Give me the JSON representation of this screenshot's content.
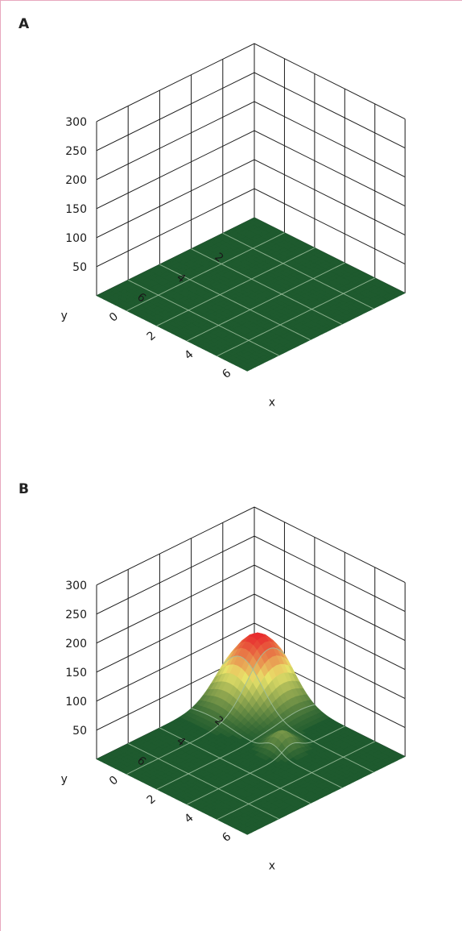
{
  "chart_data": [
    {
      "type": "surface3d",
      "panel_label": "A",
      "zlabel": "",
      "xlabel": "x",
      "ylabel": "y",
      "z_ticks": [
        50,
        100,
        150,
        200,
        250,
        300
      ],
      "x_ticks": [
        0,
        2,
        4,
        6
      ],
      "y_ticks": [
        2,
        4,
        6
      ],
      "xlim": [
        0,
        8
      ],
      "ylim": [
        0,
        8
      ],
      "zlim": [
        0,
        300
      ],
      "surface": {
        "base": 0,
        "peaks": []
      },
      "colors": {
        "floor": "#1e5a2e",
        "grid": "#1a1a1a",
        "surface_grid": "#9fbf9f"
      }
    },
    {
      "type": "surface3d",
      "panel_label": "B",
      "zlabel": "",
      "xlabel": "x",
      "ylabel": "y",
      "z_ticks": [
        50,
        100,
        150,
        200,
        250,
        300
      ],
      "x_ticks": [
        0,
        2,
        4,
        6
      ],
      "y_ticks": [
        2,
        4,
        6
      ],
      "xlim": [
        0,
        8
      ],
      "ylim": [
        0,
        8
      ],
      "zlim": [
        0,
        300
      ],
      "surface": {
        "base": 0,
        "peaks": [
          {
            "x": 1.0,
            "y": 0.8,
            "height": 110,
            "spread": 1.1
          },
          {
            "x": 4.3,
            "y": 2.7,
            "height": 28,
            "spread": 0.45
          }
        ]
      },
      "colors": {
        "floor": "#1e5a2e",
        "grid": "#1a1a1a",
        "surface_grid": "#9fbf9f",
        "low": "#1e5a2e",
        "mid": "#e9e36a",
        "high": "#e8262c"
      }
    }
  ]
}
